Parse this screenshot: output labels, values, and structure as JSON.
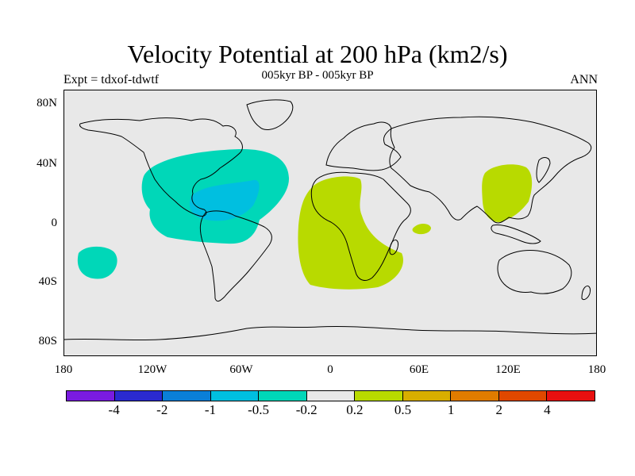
{
  "title": "Velocity Potential at 200 hPa (km2/s)",
  "subtitle": "005kyr BP - 005kyr BP",
  "left_label": "Expt = tdxof-tdwtf",
  "right_label": "ANN",
  "y_ticks": [
    "80N",
    "40N",
    "0",
    "40S",
    "80S"
  ],
  "x_ticks": [
    "180",
    "120W",
    "60W",
    "0",
    "60E",
    "120E",
    "180"
  ],
  "colorbar": {
    "colors": [
      "#7a1be0",
      "#2a2ad0",
      "#0a7fd8",
      "#00bfe0",
      "#00d7b8",
      "#e8e8e8",
      "#b8da00",
      "#d8ae00",
      "#e07c00",
      "#e04800",
      "#e81010"
    ],
    "labels": [
      "-4",
      "-2",
      "-1",
      "-0.5",
      "-0.2",
      "0.2",
      "0.5",
      "1",
      "2",
      "4"
    ]
  },
  "colors": {
    "ocean_land_background": "#e8e8e8",
    "negative_weak": "#00d7b8",
    "negative_moderate": "#00bfe0",
    "positive_weak": "#b8da00"
  }
}
